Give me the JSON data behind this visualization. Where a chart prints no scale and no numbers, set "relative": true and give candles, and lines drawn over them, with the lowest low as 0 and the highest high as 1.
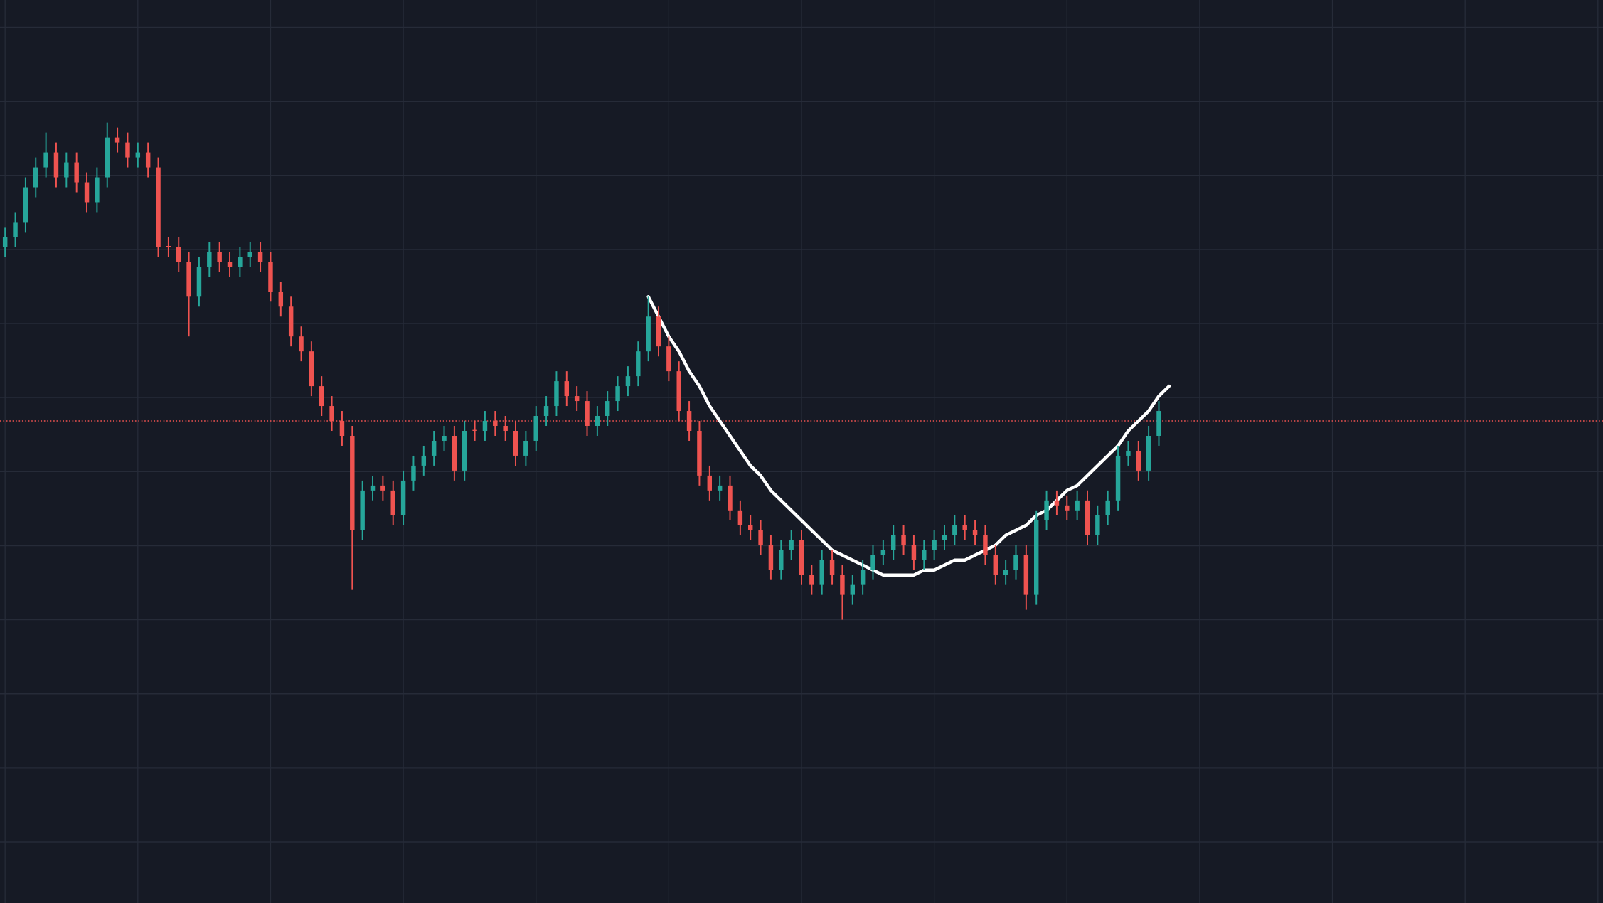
{
  "chart_data": {
    "type": "candlestick",
    "relative": true,
    "grid": true,
    "categories": [
      null,
      null,
      null,
      null,
      null,
      null,
      null,
      null,
      null,
      null,
      null,
      null,
      null,
      null,
      null,
      null,
      null,
      null,
      null,
      null,
      null,
      null,
      null,
      null,
      null,
      null,
      null,
      null,
      null,
      null,
      null,
      null,
      null,
      null,
      null,
      null,
      null,
      null,
      null,
      null,
      null,
      null,
      null,
      null,
      null,
      null,
      null,
      null,
      null,
      null,
      null,
      null,
      null,
      null,
      null,
      null,
      null,
      null,
      null,
      null,
      null,
      null,
      null,
      null,
      null,
      null,
      null,
      null,
      null,
      null,
      null,
      null,
      null,
      null,
      null,
      null,
      null,
      null,
      null,
      null,
      null,
      null,
      null,
      null,
      null,
      null,
      null,
      null,
      null,
      null,
      null,
      null,
      null,
      null,
      null,
      null,
      null,
      null,
      null,
      null,
      null,
      null,
      null,
      null,
      null,
      null,
      null,
      null,
      null,
      null,
      null,
      null,
      null,
      null,
      null,
      null,
      null,
      null,
      null,
      null,
      null,
      null,
      null,
      null,
      null,
      null,
      null,
      null,
      null,
      null,
      null,
      null,
      null,
      null,
      null,
      null,
      null,
      null,
      null,
      null,
      null,
      null,
      null,
      null,
      null,
      null,
      null,
      null,
      null,
      null,
      null,
      null,
      null,
      null,
      null,
      null,
      null
    ],
    "ohlc": [
      [
        0.75,
        0.79,
        0.73,
        0.77
      ],
      [
        0.77,
        0.82,
        0.75,
        0.8
      ],
      [
        0.8,
        0.89,
        0.78,
        0.87
      ],
      [
        0.87,
        0.93,
        0.85,
        0.91
      ],
      [
        0.91,
        0.98,
        0.89,
        0.94
      ],
      [
        0.94,
        0.96,
        0.87,
        0.89
      ],
      [
        0.89,
        0.94,
        0.87,
        0.92
      ],
      [
        0.92,
        0.94,
        0.86,
        0.88
      ],
      [
        0.88,
        0.9,
        0.82,
        0.84
      ],
      [
        0.84,
        0.91,
        0.82,
        0.89
      ],
      [
        0.89,
        1.0,
        0.87,
        0.97
      ],
      [
        0.97,
        0.99,
        0.94,
        0.96
      ],
      [
        0.96,
        0.98,
        0.91,
        0.93
      ],
      [
        0.93,
        0.96,
        0.91,
        0.94
      ],
      [
        0.94,
        0.96,
        0.89,
        0.91
      ],
      [
        0.91,
        0.93,
        0.73,
        0.75
      ],
      [
        0.75,
        0.77,
        0.73,
        0.75
      ],
      [
        0.75,
        0.77,
        0.7,
        0.72
      ],
      [
        0.72,
        0.74,
        0.57,
        0.65
      ],
      [
        0.65,
        0.73,
        0.63,
        0.71
      ],
      [
        0.71,
        0.76,
        0.69,
        0.74
      ],
      [
        0.74,
        0.76,
        0.7,
        0.72
      ],
      [
        0.72,
        0.74,
        0.69,
        0.71
      ],
      [
        0.71,
        0.75,
        0.69,
        0.73
      ],
      [
        0.73,
        0.76,
        0.71,
        0.74
      ],
      [
        0.74,
        0.76,
        0.7,
        0.72
      ],
      [
        0.72,
        0.74,
        0.64,
        0.66
      ],
      [
        0.66,
        0.68,
        0.61,
        0.63
      ],
      [
        0.63,
        0.65,
        0.55,
        0.57
      ],
      [
        0.57,
        0.59,
        0.52,
        0.54
      ],
      [
        0.54,
        0.56,
        0.45,
        0.47
      ],
      [
        0.47,
        0.49,
        0.41,
        0.43
      ],
      [
        0.43,
        0.45,
        0.38,
        0.4
      ],
      [
        0.4,
        0.42,
        0.35,
        0.37
      ],
      [
        0.37,
        0.39,
        0.06,
        0.18
      ],
      [
        0.18,
        0.28,
        0.16,
        0.26
      ],
      [
        0.26,
        0.29,
        0.24,
        0.27
      ],
      [
        0.27,
        0.29,
        0.24,
        0.26
      ],
      [
        0.26,
        0.28,
        0.19,
        0.21
      ],
      [
        0.21,
        0.3,
        0.19,
        0.28
      ],
      [
        0.28,
        0.33,
        0.26,
        0.31
      ],
      [
        0.31,
        0.35,
        0.29,
        0.33
      ],
      [
        0.33,
        0.38,
        0.31,
        0.36
      ],
      [
        0.36,
        0.39,
        0.34,
        0.37
      ],
      [
        0.37,
        0.39,
        0.28,
        0.3
      ],
      [
        0.3,
        0.4,
        0.28,
        0.38
      ],
      [
        0.38,
        0.4,
        0.36,
        0.38
      ],
      [
        0.38,
        0.42,
        0.36,
        0.4
      ],
      [
        0.4,
        0.42,
        0.37,
        0.39
      ],
      [
        0.39,
        0.41,
        0.36,
        0.38
      ],
      [
        0.38,
        0.4,
        0.31,
        0.33
      ],
      [
        0.33,
        0.38,
        0.31,
        0.36
      ],
      [
        0.36,
        0.43,
        0.34,
        0.41
      ],
      [
        0.41,
        0.45,
        0.39,
        0.43
      ],
      [
        0.43,
        0.5,
        0.41,
        0.48
      ],
      [
        0.48,
        0.5,
        0.43,
        0.45
      ],
      [
        0.45,
        0.47,
        0.42,
        0.44
      ],
      [
        0.44,
        0.46,
        0.37,
        0.39
      ],
      [
        0.39,
        0.43,
        0.37,
        0.41
      ],
      [
        0.41,
        0.46,
        0.39,
        0.44
      ],
      [
        0.44,
        0.49,
        0.42,
        0.47
      ],
      [
        0.47,
        0.51,
        0.45,
        0.49
      ],
      [
        0.49,
        0.56,
        0.47,
        0.54
      ],
      [
        0.54,
        0.65,
        0.52,
        0.61
      ],
      [
        0.61,
        0.63,
        0.53,
        0.55
      ],
      [
        0.55,
        0.57,
        0.48,
        0.5
      ],
      [
        0.5,
        0.52,
        0.4,
        0.42
      ],
      [
        0.42,
        0.44,
        0.36,
        0.38
      ],
      [
        0.38,
        0.4,
        0.27,
        0.29
      ],
      [
        0.29,
        0.31,
        0.24,
        0.26
      ],
      [
        0.26,
        0.29,
        0.24,
        0.27
      ],
      [
        0.27,
        0.29,
        0.2,
        0.22
      ],
      [
        0.22,
        0.24,
        0.17,
        0.19
      ],
      [
        0.19,
        0.21,
        0.16,
        0.18
      ],
      [
        0.18,
        0.2,
        0.13,
        0.15
      ],
      [
        0.15,
        0.17,
        0.08,
        0.1
      ],
      [
        0.1,
        0.16,
        0.08,
        0.14
      ],
      [
        0.14,
        0.18,
        0.12,
        0.16
      ],
      [
        0.16,
        0.18,
        0.07,
        0.09
      ],
      [
        0.09,
        0.11,
        0.05,
        0.07
      ],
      [
        0.07,
        0.14,
        0.05,
        0.12
      ],
      [
        0.12,
        0.14,
        0.07,
        0.09
      ],
      [
        0.09,
        0.11,
        0.0,
        0.05
      ],
      [
        0.05,
        0.09,
        0.03,
        0.07
      ],
      [
        0.07,
        0.12,
        0.05,
        0.1
      ],
      [
        0.1,
        0.15,
        0.08,
        0.13
      ],
      [
        0.13,
        0.16,
        0.11,
        0.14
      ],
      [
        0.14,
        0.19,
        0.12,
        0.17
      ],
      [
        0.17,
        0.19,
        0.13,
        0.15
      ],
      [
        0.15,
        0.17,
        0.1,
        0.12
      ],
      [
        0.12,
        0.16,
        0.1,
        0.14
      ],
      [
        0.14,
        0.18,
        0.12,
        0.16
      ],
      [
        0.16,
        0.19,
        0.14,
        0.17
      ],
      [
        0.17,
        0.21,
        0.15,
        0.19
      ],
      [
        0.19,
        0.21,
        0.16,
        0.18
      ],
      [
        0.18,
        0.2,
        0.15,
        0.17
      ],
      [
        0.17,
        0.19,
        0.11,
        0.13
      ],
      [
        0.13,
        0.15,
        0.07,
        0.09
      ],
      [
        0.09,
        0.12,
        0.07,
        0.1
      ],
      [
        0.1,
        0.15,
        0.08,
        0.13
      ],
      [
        0.13,
        0.15,
        0.02,
        0.05
      ],
      [
        0.05,
        0.22,
        0.03,
        0.2
      ],
      [
        0.2,
        0.26,
        0.18,
        0.24
      ],
      [
        0.24,
        0.26,
        0.21,
        0.23
      ],
      [
        0.23,
        0.25,
        0.2,
        0.22
      ],
      [
        0.22,
        0.26,
        0.2,
        0.24
      ],
      [
        0.24,
        0.26,
        0.15,
        0.17
      ],
      [
        0.17,
        0.23,
        0.15,
        0.21
      ],
      [
        0.21,
        0.26,
        0.19,
        0.24
      ],
      [
        0.24,
        0.35,
        0.22,
        0.33
      ],
      [
        0.33,
        0.36,
        0.31,
        0.34
      ],
      [
        0.34,
        0.36,
        0.28,
        0.3
      ],
      [
        0.3,
        0.39,
        0.28,
        0.37
      ],
      [
        0.37,
        0.44,
        0.35,
        0.42
      ],
      null,
      null,
      null,
      null,
      null,
      null,
      null,
      null,
      null,
      null,
      null,
      null,
      null,
      null,
      null,
      null,
      null,
      null,
      null,
      null,
      null,
      null,
      null,
      null,
      null,
      null,
      null,
      null,
      null,
      null,
      null,
      null,
      null,
      null,
      null,
      null,
      null,
      null,
      null,
      null,
      null,
      null,
      null
    ],
    "colors": [
      "#26a69a",
      "#26a69a",
      "#26a69a",
      "#26a69a",
      "#26a69a",
      "#ef5350",
      "#26a69a",
      "#ef5350",
      "#ef5350",
      "#26a69a",
      "#26a69a",
      "#ef5350",
      "#ef5350",
      "#26a69a",
      "#ef5350",
      "#ef5350",
      "#ef5350",
      "#ef5350",
      "#ef5350",
      "#26a69a",
      "#26a69a",
      "#ef5350",
      "#ef5350",
      "#26a69a",
      "#26a69a",
      "#ef5350",
      "#ef5350",
      "#ef5350",
      "#ef5350",
      "#ef5350",
      "#ef5350",
      "#ef5350",
      "#ef5350",
      "#ef5350",
      "#ef5350",
      "#26a69a",
      "#26a69a",
      "#ef5350",
      "#ef5350",
      "#26a69a",
      "#26a69a",
      "#26a69a",
      "#26a69a",
      "#26a69a",
      "#ef5350",
      "#26a69a",
      "#ef5350",
      "#26a69a",
      "#ef5350",
      "#ef5350",
      "#ef5350",
      "#26a69a",
      "#26a69a",
      "#26a69a",
      "#26a69a",
      "#ef5350",
      "#ef5350",
      "#ef5350",
      "#26a69a",
      "#26a69a",
      "#26a69a",
      "#26a69a",
      "#26a69a",
      "#26a69a",
      "#ef5350",
      "#ef5350",
      "#ef5350",
      "#ef5350",
      "#ef5350",
      "#ef5350",
      "#26a69a",
      "#ef5350",
      "#ef5350",
      "#ef5350",
      "#ef5350",
      "#ef5350",
      "#26a69a",
      "#26a69a",
      "#ef5350",
      "#ef5350",
      "#26a69a",
      "#ef5350",
      "#ef5350",
      "#26a69a",
      "#26a69a",
      "#26a69a",
      "#26a69a",
      "#26a69a",
      "#ef5350",
      "#ef5350",
      "#26a69a",
      "#26a69a",
      "#26a69a",
      "#26a69a",
      "#ef5350",
      "#ef5350",
      "#ef5350",
      "#ef5350",
      "#26a69a",
      "#26a69a",
      "#ef5350",
      "#26a69a",
      "#26a69a",
      "#ef5350",
      "#ef5350",
      "#26a69a",
      "#ef5350",
      "#26a69a",
      "#26a69a",
      "#26a69a",
      "#26a69a",
      "#ef5350",
      "#26a69a",
      "#26a69a",
      null,
      null,
      null,
      null,
      null,
      null,
      null,
      null,
      null,
      null,
      null,
      null,
      null,
      null,
      null,
      null,
      null,
      null,
      null,
      null,
      null,
      null,
      null,
      null,
      null,
      null,
      null,
      null,
      null,
      null,
      null,
      null,
      null,
      null,
      null,
      null,
      null,
      null,
      null,
      null,
      null,
      null,
      null
    ],
    "series": [
      {
        "type": "line",
        "color": "#ffffff",
        "values": [
          null,
          null,
          null,
          null,
          null,
          null,
          null,
          null,
          null,
          null,
          null,
          null,
          null,
          null,
          null,
          null,
          null,
          null,
          null,
          null,
          null,
          null,
          null,
          null,
          null,
          null,
          null,
          null,
          null,
          null,
          null,
          null,
          null,
          null,
          null,
          null,
          null,
          null,
          null,
          null,
          null,
          null,
          null,
          null,
          null,
          null,
          null,
          null,
          null,
          null,
          null,
          null,
          null,
          null,
          null,
          null,
          null,
          null,
          null,
          null,
          null,
          null,
          null,
          0.65,
          0.61,
          0.57,
          0.54,
          0.5,
          0.47,
          0.43,
          0.4,
          0.37,
          0.34,
          0.31,
          0.29,
          0.26,
          0.24,
          0.22,
          0.2,
          0.18,
          0.16,
          0.14,
          0.13,
          0.12,
          0.11,
          0.1,
          0.09,
          0.09,
          0.09,
          0.09,
          0.1,
          0.1,
          0.11,
          0.12,
          0.12,
          0.13,
          0.14,
          0.15,
          0.17,
          0.18,
          0.19,
          0.21,
          0.22,
          0.24,
          0.26,
          0.27,
          0.29,
          0.31,
          0.33,
          0.35,
          0.38,
          0.4,
          0.42,
          0.45,
          0.47,
          null,
          null,
          null,
          null,
          null,
          null,
          null,
          null,
          null,
          null,
          null,
          null,
          null,
          null,
          null,
          null,
          null,
          null,
          null,
          null,
          null,
          null,
          null,
          null,
          null,
          null,
          null,
          null,
          null,
          null,
          null,
          null,
          null,
          null,
          null,
          null,
          null,
          null,
          null,
          null,
          null,
          null
        ]
      }
    ],
    "ref_lines": [
      {
        "axis": "y",
        "value": 0.4,
        "color": "#ef5350",
        "line_style": "dotted"
      }
    ]
  }
}
